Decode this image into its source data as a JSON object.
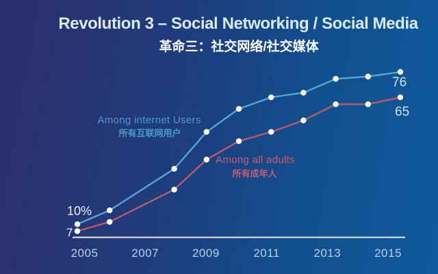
{
  "chart_data": {
    "type": "line",
    "title": "Revolution 3 – Social Networking / Social Media",
    "subtitle_zh": "革命三：社交网络/社交媒体",
    "x": [
      2005,
      2006,
      2008,
      2009,
      2010,
      2011,
      2012,
      2013,
      2014,
      2015
    ],
    "x_ticks": [
      2005,
      2007,
      2009,
      2011,
      2013,
      2015
    ],
    "ylim": [
      0,
      85
    ],
    "grid": false,
    "legend_position": "inline-labels-near-lines",
    "point_color": "#ffffff",
    "axis_line_color": "#ece7d9",
    "series": [
      {
        "name": "Among internet Users",
        "name_zh": "所有互联网用户",
        "color": "#55a6d7",
        "label_color": "#4a9bce",
        "values": [
          10,
          16,
          34,
          50,
          60,
          65,
          67,
          73,
          74,
          76
        ],
        "first_point_label": "10%",
        "last_point_label": "76"
      },
      {
        "name": "Among all adults",
        "name_zh": "所有成年人",
        "color": "#bb5a68",
        "label_color": "#c65d72",
        "values": [
          7,
          11,
          25,
          38,
          46,
          50,
          55,
          62,
          62,
          65
        ],
        "first_point_label": "7",
        "last_point_label": "65"
      }
    ]
  },
  "colors": {
    "background_left": "#2c2f6e",
    "background_right": "#0e5a9c",
    "title": "#d9eaf7",
    "subtitle": "#ffffff",
    "tick_labels": "#b9d1e7",
    "value_labels": "#cfe3f3"
  }
}
